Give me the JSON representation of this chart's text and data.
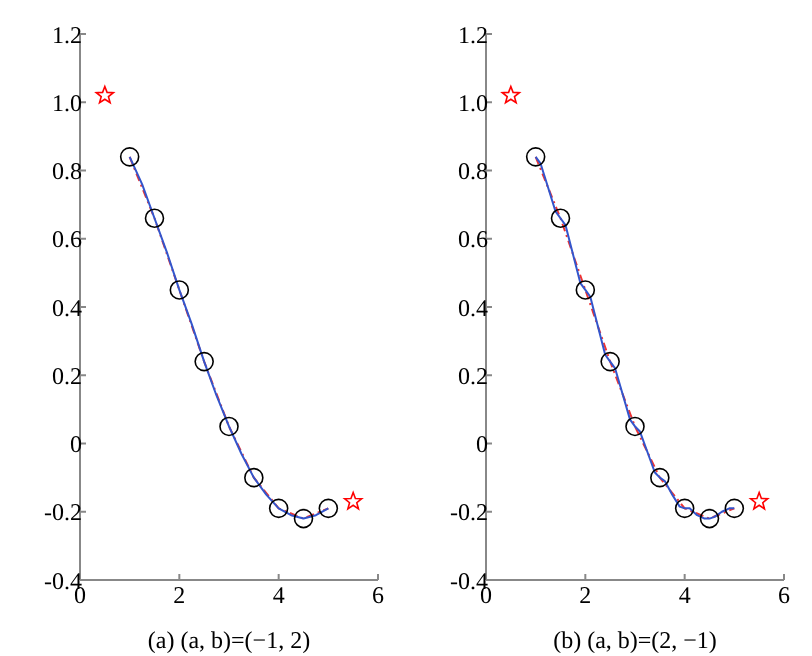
{
  "chart_data": [
    {
      "type": "line",
      "xlabel": "(a) (a, b)=(−1, 2)",
      "xlim": [
        0,
        6
      ],
      "xticks": [
        0,
        2,
        4,
        6
      ],
      "ylim": [
        -0.4,
        1.2
      ],
      "yticks": [
        -0.4,
        -0.2,
        0,
        0.2,
        0.4,
        0.6,
        0.8,
        {
          "value": 1,
          "label": "1.0"
        },
        1.2
      ],
      "legend": false,
      "grid": false,
      "series": [
        {
          "color": "#ee3333",
          "line_style": "dashed",
          "marker": "none",
          "x": [
            1,
            1.5,
            2,
            2.5,
            3,
            3.5,
            4,
            4.5,
            5
          ],
          "values": [
            0.84,
            0.66,
            0.45,
            0.24,
            0.05,
            -0.1,
            -0.19,
            -0.22,
            -0.19
          ]
        },
        {
          "color": "#3355cc",
          "line_style": "solid",
          "marker": "none",
          "x": [
            1,
            1.25,
            1.5,
            1.75,
            2,
            2.25,
            2.5,
            2.75,
            3,
            3.25,
            3.5,
            3.75,
            4,
            4.25,
            4.5,
            4.75,
            5
          ],
          "values": [
            0.84,
            0.76,
            0.66,
            0.56,
            0.45,
            0.35,
            0.24,
            0.14,
            0.05,
            -0.03,
            -0.1,
            -0.15,
            -0.19,
            -0.21,
            -0.22,
            -0.21,
            -0.19
          ]
        },
        {
          "type": "scatter",
          "color": "#000000",
          "marker": "circle",
          "x": [
            1,
            1.5,
            2,
            2.5,
            3,
            3.5,
            4,
            4.5,
            5
          ],
          "values": [
            0.84,
            0.66,
            0.45,
            0.24,
            0.05,
            -0.1,
            -0.19,
            -0.22,
            -0.19
          ]
        },
        {
          "type": "scatter",
          "color": "#ff0000",
          "marker": "star",
          "x": [
            0.5,
            5.5
          ],
          "values": [
            1.02,
            -0.17
          ]
        }
      ]
    },
    {
      "type": "line",
      "xlabel": "(b) (a, b)=(2, −1)",
      "xlim": [
        0,
        6
      ],
      "xticks": [
        0,
        2,
        4,
        6
      ],
      "ylim": [
        -0.4,
        1.2
      ],
      "yticks": [
        -0.4,
        -0.2,
        0,
        0.2,
        0.4,
        0.6,
        0.8,
        {
          "value": 1,
          "label": "1.0"
        },
        1.2
      ],
      "legend": false,
      "grid": false,
      "series": [
        {
          "color": "#ee3333",
          "line_style": "dashed",
          "marker": "none",
          "x": [
            1,
            1.5,
            2,
            2.5,
            3,
            3.5,
            4,
            4.5,
            5
          ],
          "values": [
            0.84,
            0.66,
            0.45,
            0.24,
            0.05,
            -0.1,
            -0.19,
            -0.22,
            -0.19
          ]
        },
        {
          "color": "#3355cc",
          "line_style": "solid",
          "marker": "none",
          "x": [
            1,
            1.1,
            1.25,
            1.4,
            1.5,
            1.6,
            1.75,
            1.9,
            2,
            2.1,
            2.25,
            2.4,
            2.5,
            2.6,
            2.75,
            2.9,
            3,
            3.1,
            3.25,
            3.4,
            3.5,
            3.6,
            3.75,
            3.9,
            4,
            4.1,
            4.25,
            4.4,
            4.5,
            4.6,
            4.75,
            4.9,
            5
          ],
          "values": [
            0.84,
            0.82,
            0.75,
            0.68,
            0.66,
            0.64,
            0.555,
            0.47,
            0.45,
            0.43,
            0.345,
            0.26,
            0.24,
            0.22,
            0.145,
            0.07,
            0.05,
            0.035,
            -0.025,
            -0.085,
            -0.1,
            -0.11,
            -0.15,
            -0.185,
            -0.19,
            -0.19,
            -0.21,
            -0.22,
            -0.22,
            -0.215,
            -0.2,
            -0.19,
            -0.19
          ]
        },
        {
          "type": "scatter",
          "color": "#000000",
          "marker": "circle",
          "x": [
            1,
            1.5,
            2,
            2.5,
            3,
            3.5,
            4,
            4.5,
            5
          ],
          "values": [
            0.84,
            0.66,
            0.45,
            0.24,
            0.05,
            -0.1,
            -0.19,
            -0.22,
            -0.19
          ]
        },
        {
          "type": "scatter",
          "color": "#ff0000",
          "marker": "star",
          "x": [
            0.5,
            5.5
          ],
          "values": [
            1.02,
            -0.17
          ]
        }
      ]
    }
  ]
}
